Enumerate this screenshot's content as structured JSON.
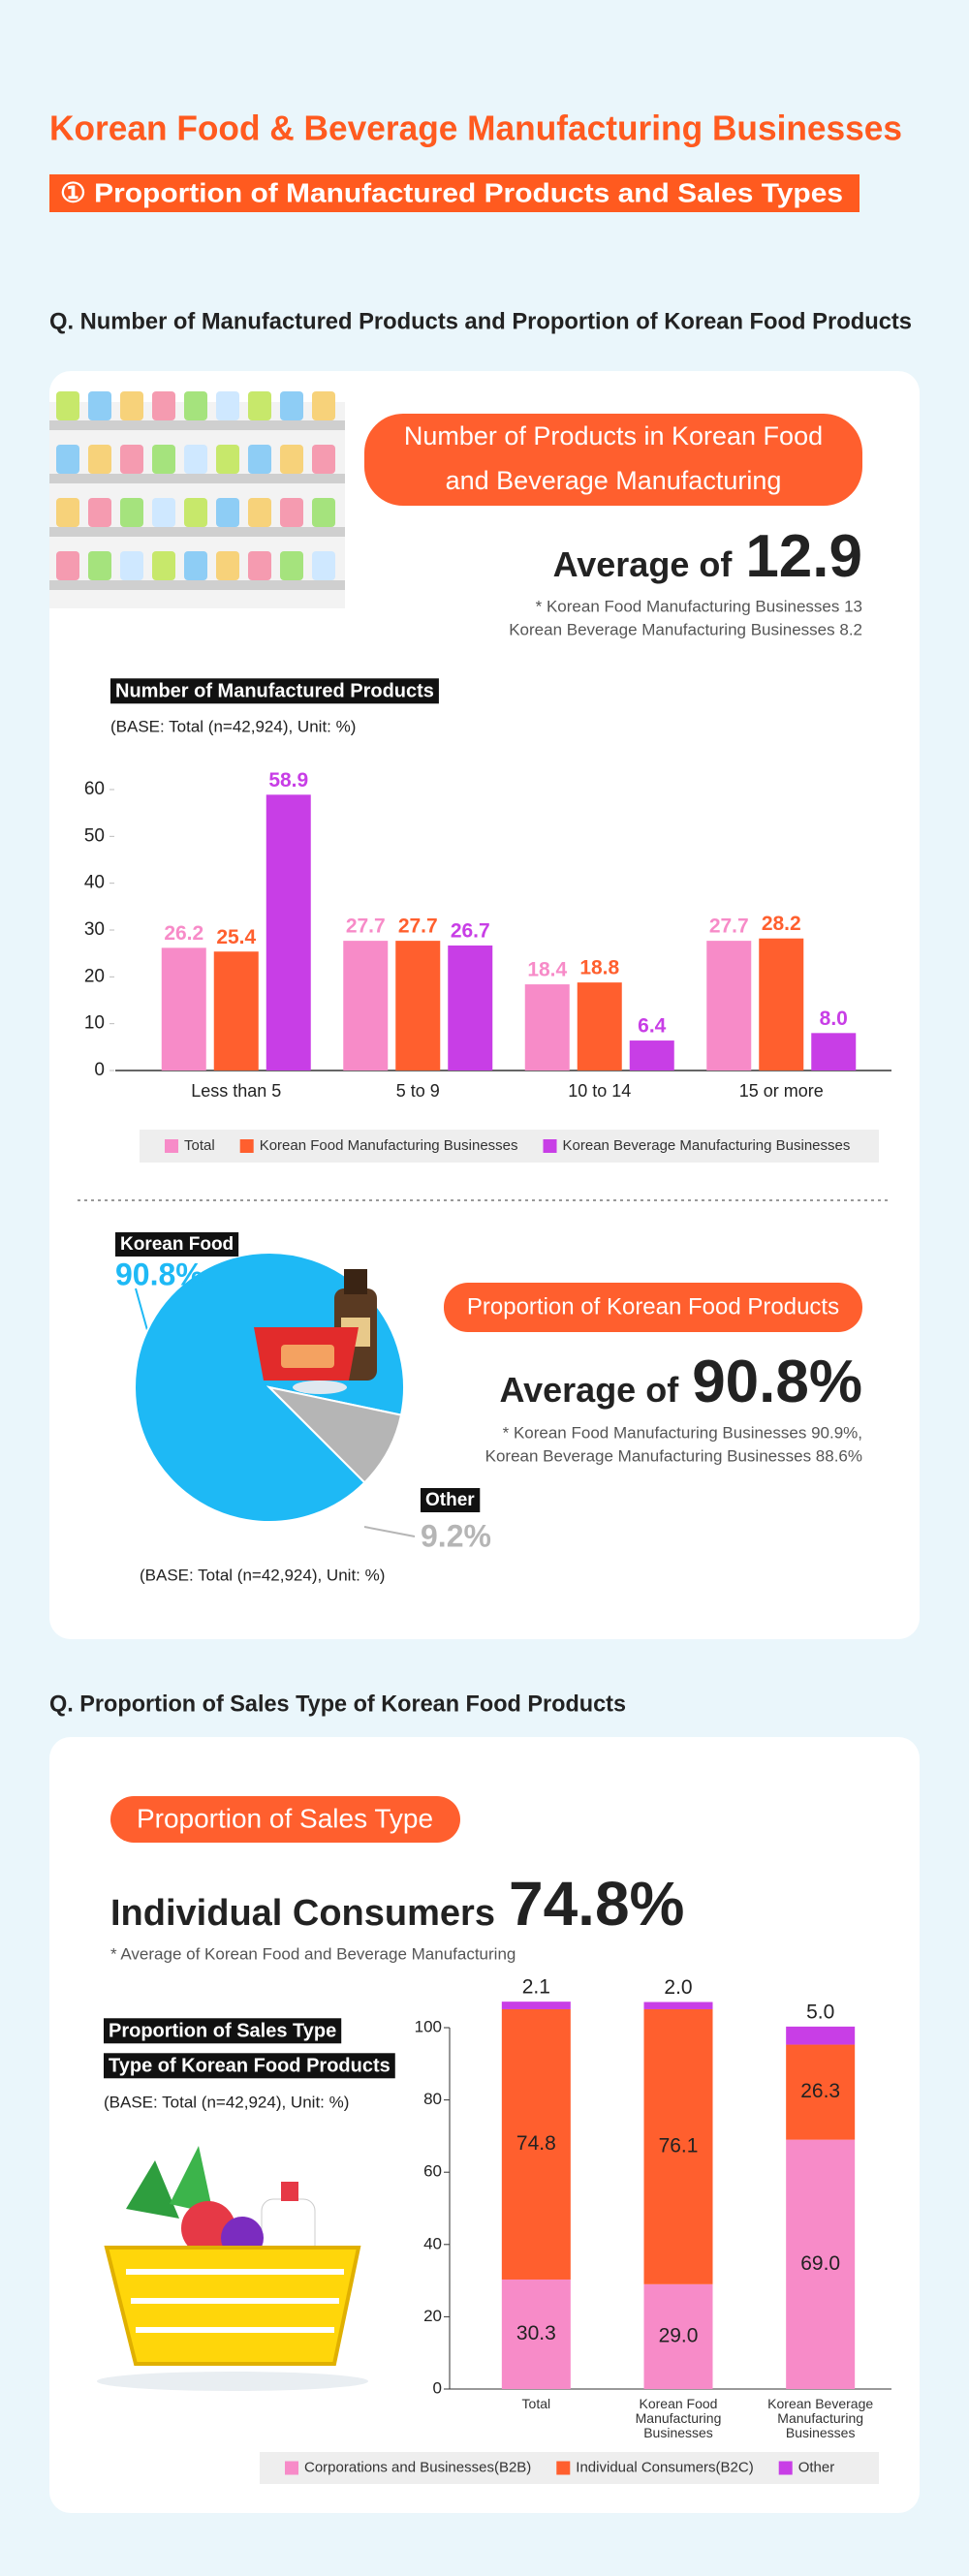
{
  "header": {
    "title": "Korean Food & Beverage Manufacturing Businesses",
    "subtitle": "① Proportion of Manufactured Products and Sales Types"
  },
  "section1": {
    "question": "Q. Number of Manufactured Products and Proportion of Korean Food Products",
    "products": {
      "badge": [
        "Number of Products in Korean Food",
        "and Beverage Manufacturing"
      ],
      "average_label": "Average of",
      "average_value": 12.9,
      "notes": [
        "* Korean Food Manufacturing Businesses 13",
        "Korean Beverage Manufacturing Businesses 8.2"
      ]
    },
    "korean_food": {
      "badge": "Proportion of Korean Food Products",
      "average_label": "Average of",
      "average_value": "90.8%",
      "notes": [
        "* Korean Food Manufacturing Businesses 90.9%,",
        "Korean Beverage Manufacturing Businesses 88.6%"
      ]
    }
  },
  "section2": {
    "question": "Q. Proportion of Sales Type of Korean Food Products",
    "badge": "Proportion of Sales Type",
    "headline_label": "Individual Consumers",
    "headline_value": "74.8%",
    "note": "* Average of Korean Food and Beverage Manufacturing"
  },
  "chart_data": [
    {
      "type": "bar",
      "title": "Number of Manufactured Products",
      "subtitle": "(BASE: Total (n=42,924), Unit: %)",
      "categories": [
        "Less than 5",
        "5 to 9",
        "10 to 14",
        "15 or more"
      ],
      "series": [
        {
          "name": "Total",
          "color": "#f78bc8",
          "values": [
            26.2,
            27.7,
            18.4,
            27.7
          ],
          "value_labels": [
            "26.2",
            "27.7",
            "18.4",
            "27.7"
          ]
        },
        {
          "name": "Korean Food Manufacturing Businesses",
          "color": "#ff5f2e",
          "values": [
            25.4,
            27.7,
            18.8,
            28.2
          ],
          "value_labels": [
            "25.4",
            "27.7",
            "18.8",
            "28.2"
          ]
        },
        {
          "name": "Korean Beverage Manufacturing Businesses",
          "color": "#c83ee6",
          "values": [
            58.9,
            26.7,
            6.4,
            8.0
          ],
          "value_labels": [
            "58.9",
            "26.7",
            "6.4",
            "8.0"
          ]
        }
      ],
      "ylim": [
        0,
        60
      ],
      "yticks": [
        0,
        10,
        20,
        30,
        40,
        50,
        60
      ],
      "legend": "bottom"
    },
    {
      "type": "pie",
      "subtitle": "(BASE: Total (n=42,924), Unit: %)",
      "categories": [
        "Korean Food",
        "Other"
      ],
      "values": [
        90.8,
        9.2
      ],
      "value_labels": [
        "90.8%",
        "9.2%"
      ],
      "colors": [
        "#1eb9f5",
        "#b5b5b5"
      ]
    },
    {
      "type": "stacked_bar",
      "title": [
        "Proportion of Sales Type",
        "Type of Korean Food Products"
      ],
      "subtitle": "(BASE: Total (n=42,924), Unit: %)",
      "categories": [
        "Total",
        "Korean Food Manufacturing Businesses",
        "Korean Beverage Manufacturing Businesses"
      ],
      "series": [
        {
          "name": "Corporations and Businesses(B2B)",
          "color": "#f78bc8",
          "values": [
            30.3,
            29.0,
            69.0
          ],
          "value_labels": [
            "30.3",
            "29.0",
            "69.0"
          ]
        },
        {
          "name": "Individual Consumers(B2C)",
          "color": "#ff5f2e",
          "values": [
            74.8,
            76.1,
            26.3
          ],
          "value_labels": [
            "74.8",
            "76.1",
            "26.3"
          ]
        },
        {
          "name": "Other",
          "color": "#c83ee6",
          "values": [
            2.1,
            2.0,
            5.0
          ],
          "value_labels": [
            "2.1",
            "2.0",
            "5.0"
          ]
        }
      ],
      "ylim": [
        0,
        100
      ],
      "yticks": [
        0,
        20,
        40,
        60,
        80,
        100
      ],
      "legend": "bottom"
    }
  ]
}
